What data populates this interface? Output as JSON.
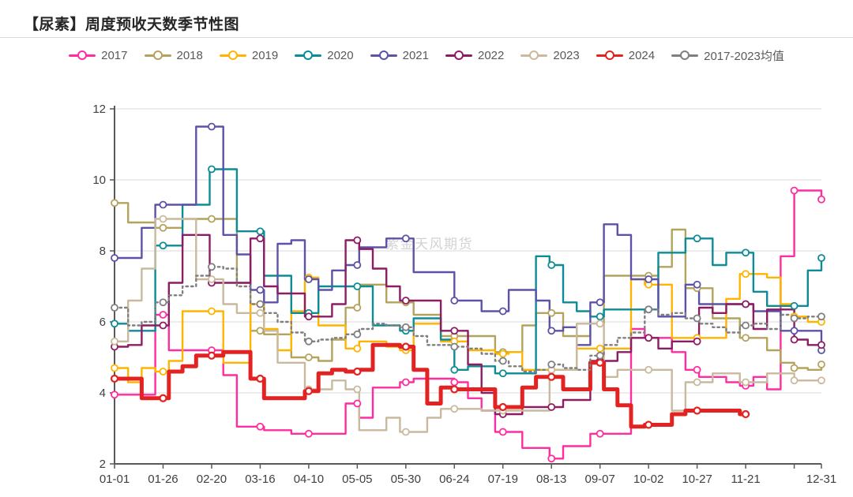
{
  "header": {
    "title": "【尿素】周度预收天数季节性图"
  },
  "watermark": "紫金天风期货",
  "chart_data": {
    "type": "line",
    "title": "【尿素】周度预收天数季节性图",
    "xlabel": "",
    "ylabel": "",
    "grid": "horizontal",
    "legend_position": "top",
    "x_axis": {
      "unit": "day-of-year",
      "range_days": [
        0,
        364
      ],
      "tick_days": [
        0,
        25,
        50,
        75,
        100,
        125,
        150,
        175,
        200,
        225,
        250,
        275,
        300,
        325,
        350,
        364
      ],
      "tick_labels": [
        "01-01",
        "01-26",
        "02-20",
        "03-16",
        "04-10",
        "05-05",
        "05-30",
        "06-24",
        "07-19",
        "08-13",
        "09-07",
        "10-02",
        "10-27",
        "11-21",
        "",
        "12-31"
      ]
    },
    "y_axis": {
      "min": 2,
      "max": 12,
      "ticks": [
        2,
        4,
        6,
        8,
        10,
        12
      ]
    },
    "week_step_days": 7,
    "marker_days": [
      0,
      25,
      50,
      75,
      100,
      125,
      150,
      175,
      200,
      225,
      250,
      275,
      300,
      325,
      350,
      364
    ],
    "series": [
      {
        "name": "2017",
        "color": "#ff2da0",
        "width": 2.4,
        "dotted": false,
        "values": [
          3.95,
          3.95,
          3.95,
          6.2,
          5.2,
          5.2,
          5.2,
          5.2,
          4.5,
          3.05,
          3.05,
          2.95,
          2.95,
          2.85,
          2.85,
          2.85,
          2.85,
          3.7,
          3.3,
          4.15,
          4.15,
          4.3,
          4.4,
          4.4,
          4.4,
          4.3,
          3.85,
          3.5,
          2.9,
          2.9,
          2.45,
          2.45,
          2.15,
          2.5,
          2.5,
          2.85,
          2.85,
          2.85,
          5.8,
          5.55,
          5.55,
          5.15,
          4.65,
          4.45,
          4.45,
          4.3,
          4.2,
          4.45,
          4.1,
          7.85,
          9.7,
          9.7,
          9.45
        ]
      },
      {
        "name": "2018",
        "color": "#b3a35c",
        "width": 2.4,
        "dotted": false,
        "values": [
          9.35,
          8.8,
          8.8,
          8.65,
          8.65,
          8.9,
          8.9,
          8.9,
          8.9,
          7.1,
          5.75,
          5.65,
          5.65,
          5.0,
          5.0,
          4.9,
          5.5,
          6.4,
          7.05,
          7.05,
          6.55,
          6.55,
          6.2,
          6.2,
          5.6,
          5.6,
          5.6,
          5.6,
          5.15,
          5.15,
          5.9,
          6.25,
          6.25,
          5.6,
          5.6,
          5.95,
          7.3,
          7.3,
          7.3,
          7.3,
          7.55,
          8.6,
          6.95,
          6.95,
          6.1,
          6.1,
          5.55,
          5.55,
          5.2,
          4.85,
          4.7,
          4.65,
          4.8
        ]
      },
      {
        "name": "2019",
        "color": "#ffb400",
        "width": 2.4,
        "dotted": false,
        "values": [
          4.7,
          4.3,
          4.7,
          4.6,
          4.9,
          6.3,
          6.3,
          6.3,
          4.85,
          4.85,
          6.5,
          5.8,
          5.2,
          6.3,
          7.25,
          5.9,
          5.9,
          5.25,
          5.45,
          5.45,
          5.3,
          5.2,
          5.95,
          5.95,
          5.45,
          5.45,
          5.2,
          5.2,
          5.1,
          5.15,
          4.65,
          4.65,
          4.65,
          4.65,
          5.25,
          5.25,
          5.25,
          5.25,
          7.2,
          7.05,
          7.05,
          5.55,
          5.55,
          5.55,
          5.55,
          6.65,
          7.35,
          7.35,
          7.25,
          6.5,
          6.15,
          6.0,
          6.0
        ]
      },
      {
        "name": "2020",
        "color": "#0e8c96",
        "width": 2.4,
        "dotted": false,
        "values": [
          5.95,
          5.75,
          5.75,
          8.15,
          8.15,
          9.3,
          9.3,
          10.3,
          10.3,
          8.55,
          8.55,
          7.3,
          7.3,
          6.25,
          6.25,
          7.0,
          7.0,
          7.0,
          7.0,
          5.9,
          5.9,
          5.75,
          6.1,
          6.1,
          5.5,
          4.65,
          4.75,
          4.75,
          4.55,
          4.55,
          4.55,
          7.85,
          7.6,
          6.55,
          6.3,
          6.15,
          6.35,
          6.35,
          6.35,
          6.35,
          7.95,
          7.95,
          8.35,
          8.35,
          7.6,
          7.95,
          7.95,
          6.85,
          6.45,
          6.45,
          6.45,
          7.45,
          7.8
        ]
      },
      {
        "name": "2021",
        "color": "#5c52a8",
        "width": 2.4,
        "dotted": false,
        "values": [
          7.8,
          7.8,
          8.65,
          9.3,
          9.3,
          9.3,
          11.5,
          11.5,
          8.45,
          7.9,
          6.9,
          6.55,
          8.2,
          8.3,
          7.2,
          6.9,
          7.45,
          7.6,
          8.1,
          8.1,
          8.35,
          8.35,
          7.4,
          7.4,
          7.4,
          6.6,
          6.6,
          6.3,
          6.3,
          6.9,
          6.9,
          6.6,
          5.75,
          5.85,
          5.35,
          6.55,
          8.75,
          8.45,
          7.2,
          7.2,
          6.15,
          6.15,
          7.05,
          6.5,
          6.5,
          6.5,
          6.5,
          6.3,
          6.3,
          5.75,
          5.75,
          5.75,
          5.2
        ]
      },
      {
        "name": "2022",
        "color": "#8d1d63",
        "width": 2.4,
        "dotted": false,
        "values": [
          5.3,
          5.35,
          5.9,
          5.9,
          7.1,
          8.45,
          8.45,
          7.1,
          7.1,
          7.1,
          8.35,
          7.0,
          6.8,
          6.8,
          6.15,
          6.15,
          6.5,
          8.3,
          8.05,
          7.5,
          7.0,
          6.6,
          6.6,
          6.6,
          5.75,
          5.75,
          4.8,
          4.0,
          3.4,
          3.4,
          3.6,
          3.6,
          3.6,
          3.8,
          3.8,
          4.9,
          4.9,
          5.15,
          5.55,
          5.55,
          5.25,
          5.45,
          5.45,
          6.4,
          6.25,
          6.5,
          6.5,
          5.8,
          6.35,
          6.35,
          5.5,
          5.35,
          5.35
        ]
      },
      {
        "name": "2023",
        "color": "#c9ba9e",
        "width": 2.4,
        "dotted": false,
        "values": [
          5.45,
          6.6,
          7.5,
          8.9,
          8.9,
          8.9,
          7.2,
          7.2,
          6.5,
          6.25,
          6.25,
          5.75,
          4.85,
          4.85,
          4.1,
          4.1,
          4.35,
          4.1,
          2.95,
          2.95,
          3.3,
          2.9,
          2.9,
          3.3,
          3.55,
          3.55,
          3.55,
          3.5,
          3.5,
          3.5,
          3.5,
          3.5,
          4.65,
          4.65,
          5.95,
          5.95,
          4.45,
          4.65,
          4.65,
          4.65,
          4.65,
          3.5,
          4.3,
          4.3,
          4.55,
          4.55,
          4.3,
          4.3,
          4.55,
          4.55,
          4.35,
          4.35,
          4.35
        ]
      },
      {
        "name": "2024",
        "color": "#e32222",
        "width": 5,
        "dotted": false,
        "values": [
          4.4,
          4.4,
          3.85,
          3.85,
          4.6,
          4.75,
          5.05,
          5.05,
          5.15,
          5.15,
          4.4,
          3.85,
          3.85,
          3.85,
          4.05,
          4.55,
          4.65,
          4.6,
          4.65,
          5.35,
          5.35,
          5.3,
          4.65,
          3.7,
          4.15,
          4.1,
          4.1,
          4.1,
          3.6,
          3.6,
          4.15,
          4.45,
          4.45,
          4.1,
          4.1,
          4.85,
          4.1,
          3.65,
          3.05,
          3.1,
          3.1,
          3.4,
          3.5,
          3.5,
          3.5,
          3.5,
          3.4,
          null,
          null,
          null,
          null,
          null,
          null
        ]
      },
      {
        "name": "2017-2023均值",
        "color": "#7f7f7f",
        "width": 2.4,
        "dotted": true,
        "values": [
          6.4,
          5.9,
          6.0,
          6.55,
          6.75,
          7.0,
          7.3,
          7.55,
          7.5,
          7.0,
          6.5,
          6.25,
          6.0,
          5.7,
          5.45,
          5.5,
          5.55,
          5.65,
          5.8,
          5.95,
          5.9,
          5.85,
          5.6,
          5.35,
          5.35,
          5.3,
          5.25,
          5.1,
          4.9,
          4.75,
          4.6,
          4.65,
          4.8,
          4.7,
          4.65,
          5.05,
          5.35,
          5.55,
          5.7,
          6.35,
          6.2,
          6.25,
          6.1,
          5.95,
          5.85,
          5.7,
          5.9,
          5.95,
          5.8,
          6.2,
          6.1,
          6.15,
          6.15
        ]
      }
    ]
  }
}
